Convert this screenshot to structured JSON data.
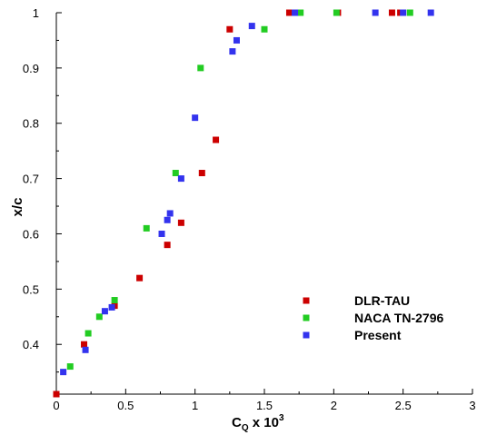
{
  "chart_data": {
    "type": "scatter",
    "xlabel_main": "C",
    "xlabel_sub": "Q",
    "xlabel_rest": " x 10",
    "xlabel_sup": "3",
    "ylabel": "x/c",
    "xlim": [
      0,
      3
    ],
    "ylim": [
      0.31,
      1.0
    ],
    "xticks": [
      0,
      0.5,
      1,
      1.5,
      2,
      2.5,
      3
    ],
    "xtick_labels": [
      "0",
      "0.5",
      "1",
      "1.5",
      "2",
      "2.5",
      "3"
    ],
    "yticks": [
      0.4,
      0.5,
      0.6,
      0.7,
      0.8,
      0.9,
      1.0
    ],
    "ytick_labels": [
      "0.4",
      "0.5",
      "0.6",
      "0.7",
      "0.8",
      "0.9",
      "1"
    ],
    "grid": false,
    "legend_position": "lower-right",
    "series": [
      {
        "name": "DLR-TAU",
        "color": "#cc0000",
        "points": [
          [
            0.0,
            0.31
          ],
          [
            0.2,
            0.4
          ],
          [
            0.42,
            0.47
          ],
          [
            0.6,
            0.52
          ],
          [
            0.8,
            0.58
          ],
          [
            0.9,
            0.62
          ],
          [
            1.05,
            0.71
          ],
          [
            1.15,
            0.77
          ],
          [
            1.25,
            0.97
          ],
          [
            1.68,
            1.0
          ],
          [
            2.03,
            1.0
          ],
          [
            2.42,
            1.0
          ],
          [
            2.48,
            1.0
          ]
        ]
      },
      {
        "name": "NACA TN-2796",
        "color": "#22cc22",
        "points": [
          [
            0.1,
            0.36
          ],
          [
            0.23,
            0.42
          ],
          [
            0.31,
            0.45
          ],
          [
            0.42,
            0.48
          ],
          [
            0.65,
            0.61
          ],
          [
            0.86,
            0.71
          ],
          [
            1.04,
            0.9
          ],
          [
            1.5,
            0.97
          ],
          [
            1.76,
            1.0
          ],
          [
            2.02,
            1.0
          ],
          [
            2.55,
            1.0
          ]
        ]
      },
      {
        "name": "Present",
        "color": "#3333ee",
        "points": [
          [
            0.05,
            0.35
          ],
          [
            0.21,
            0.39
          ],
          [
            0.35,
            0.46
          ],
          [
            0.4,
            0.467
          ],
          [
            0.76,
            0.6
          ],
          [
            0.8,
            0.625
          ],
          [
            0.82,
            0.637
          ],
          [
            0.9,
            0.7
          ],
          [
            1.0,
            0.81
          ],
          [
            1.27,
            0.93
          ],
          [
            1.3,
            0.95
          ],
          [
            1.41,
            0.976
          ],
          [
            1.72,
            1.0
          ],
          [
            2.3,
            1.0
          ],
          [
            2.5,
            1.0
          ],
          [
            2.7,
            1.0
          ]
        ]
      }
    ]
  }
}
